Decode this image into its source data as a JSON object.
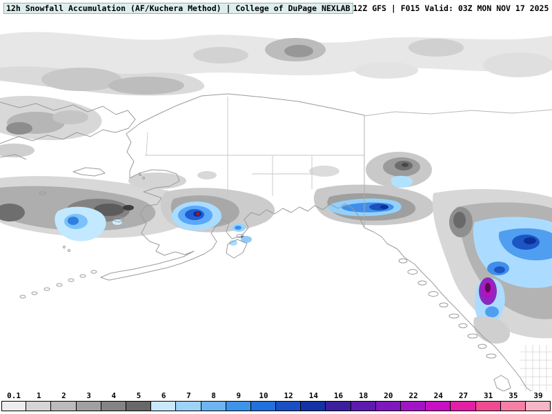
{
  "header": {
    "product_title": "12h Snowfall Accumulation (AF/Kuchera Method) | College of DuPage NEXLAB",
    "model_info": "12Z GFS | F015 Valid: 03Z MON NOV 17 2025"
  },
  "colorbar": {
    "stops": [
      {
        "label": "0.1",
        "color": "#ededed"
      },
      {
        "label": "1",
        "color": "#d5d5d5"
      },
      {
        "label": "2",
        "color": "#bbbbbb"
      },
      {
        "label": "3",
        "color": "#a0a0a0"
      },
      {
        "label": "4",
        "color": "#848484"
      },
      {
        "label": "5",
        "color": "#686868"
      },
      {
        "label": "6",
        "color": "#c8e8fb"
      },
      {
        "label": "7",
        "color": "#9cd3f7"
      },
      {
        "label": "8",
        "color": "#6cb5f1"
      },
      {
        "label": "9",
        "color": "#3e93ea"
      },
      {
        "label": "10",
        "color": "#2270dd"
      },
      {
        "label": "12",
        "color": "#1a4fc4"
      },
      {
        "label": "14",
        "color": "#1232a6"
      },
      {
        "label": "16",
        "color": "#3c1f9e"
      },
      {
        "label": "18",
        "color": "#5d1bae"
      },
      {
        "label": "20",
        "color": "#7f17be"
      },
      {
        "label": "22",
        "color": "#a313c6"
      },
      {
        "label": "24",
        "color": "#c711c2"
      },
      {
        "label": "27",
        "color": "#e31fa6"
      },
      {
        "label": "31",
        "color": "#ef4a92"
      },
      {
        "label": "35",
        "color": "#f57fa6"
      },
      {
        "label": "39",
        "color": "#f9b4c6"
      }
    ]
  }
}
